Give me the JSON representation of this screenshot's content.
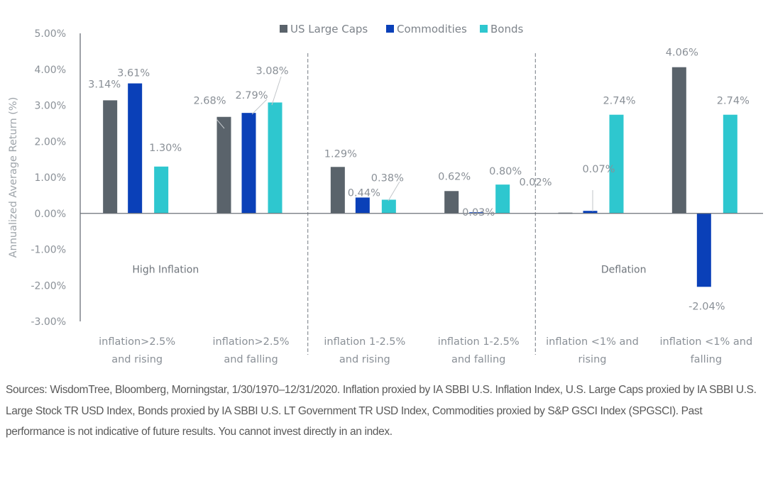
{
  "chart_data": {
    "type": "bar",
    "title": "",
    "xlabel": "",
    "ylabel": "Annualized Average Return (%)",
    "ylim": [
      -3,
      5
    ],
    "yticks": [
      5,
      4,
      3,
      2,
      1,
      0,
      -1,
      -2,
      -3
    ],
    "ytick_labels": [
      "5.00%",
      "4.00%",
      "3.00%",
      "2.00%",
      "1.00%",
      "0.00%",
      "-1.00%",
      "-2.00%",
      "-3.00%"
    ],
    "grid": false,
    "legend_position": "top-center",
    "categories": [
      [
        "inflation>2.5%",
        "and rising"
      ],
      [
        "inflation>2.5%",
        "and falling"
      ],
      [
        "inflation 1-2.5%",
        "and rising"
      ],
      [
        "inflation 1-2.5%",
        "and falling"
      ],
      [
        "inflation <1% and",
        "rising"
      ],
      [
        "inflation <1% and",
        "falling"
      ]
    ],
    "series": [
      {
        "name": "US Large Caps",
        "color": "#5a636b",
        "values": [
          3.14,
          2.68,
          1.29,
          0.62,
          0.02,
          4.06
        ],
        "labels": [
          "3.14%",
          "2.68%",
          "1.29%",
          "0.62%",
          "0.02%",
          "4.06%"
        ]
      },
      {
        "name": "Commodities",
        "color": "#0a40b8",
        "values": [
          3.61,
          2.79,
          0.44,
          0.03,
          0.07,
          -2.04
        ],
        "labels": [
          "3.61%",
          "2.79%",
          "0.44%",
          "0.03%",
          "0.07%",
          "-2.04%"
        ]
      },
      {
        "name": "Bonds",
        "color": "#2ec7cf",
        "values": [
          1.3,
          3.08,
          0.38,
          0.8,
          2.74,
          2.74
        ],
        "labels": [
          "1.30%",
          "3.08%",
          "0.38%",
          "0.80%",
          "2.74%",
          "2.74%"
        ]
      }
    ],
    "annotations": [
      {
        "text": "High Inflation",
        "spans_categories": [
          0,
          1
        ],
        "at_value": -1.55
      },
      {
        "text": "Deflation",
        "spans_categories": [
          4,
          5
        ],
        "at_value": -1.55
      }
    ],
    "dividers_after_category": [
      1,
      3
    ]
  },
  "footnote": "Sources: WisdomTree, Bloomberg, Morningstar, 1/30/1970–12/31/2020. Inflation proxied by IA SBBI U.S. Inflation Index, U.S. Large Caps proxied by IA SBBI U.S. Large Stock TR USD Index, Bonds proxied by IA SBBI U.S. LT Government TR USD Index, Commodities proxied by S&P GSCI Index (SPGSCI). Past performance is not indicative of future results. You cannot invest directly in an index."
}
